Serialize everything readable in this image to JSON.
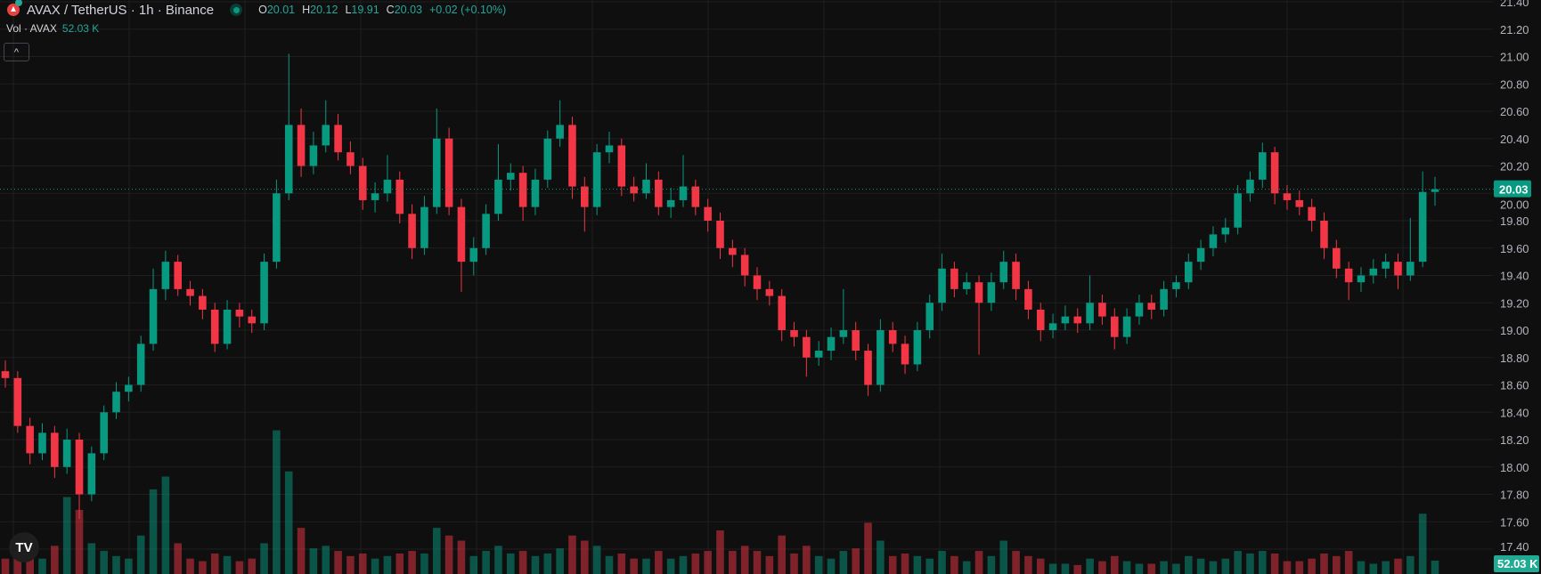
{
  "header": {
    "symbol_title": "AVAX / TetherUS · 1h · Binance",
    "open_label": "O",
    "open": "20.01",
    "high_label": "H",
    "high": "20.12",
    "low_label": "L",
    "low": "19.91",
    "close_label": "C",
    "close": "20.03",
    "change": "+0.02 (+0.10%)",
    "volume_label": "Vol · AVAX",
    "volume_value": "52.03 K",
    "collapse_icon": "chevron-up-icon",
    "collapse_glyph": "^"
  },
  "colors": {
    "up": "#089981",
    "down": "#f23645",
    "background": "#0f0f0f",
    "grid": "#1f1f1f",
    "price_line": "#089981",
    "volume_label_bg": "#22ab94"
  },
  "price_axis": {
    "ticks": [
      "21.40",
      "21.20",
      "21.00",
      "20.80",
      "20.60",
      "20.40",
      "20.20",
      "20.00",
      "19.80",
      "19.60",
      "19.40",
      "19.20",
      "19.00",
      "18.80",
      "18.60",
      "18.40",
      "18.20",
      "18.00",
      "17.80",
      "17.60",
      "17.40"
    ],
    "current_price_label": "20.03",
    "current_volume_label": "52.03 K"
  },
  "watermark": "TV",
  "chart_data": {
    "type": "candlestick",
    "symbol": "AVAX / TetherUS",
    "interval": "1h",
    "ylim": [
      17.4,
      21.4
    ],
    "grid": true,
    "current_price": 20.03,
    "candle_fields": [
      "open",
      "high",
      "low",
      "close",
      "volume_k"
    ],
    "candles": [
      [
        18.7,
        18.78,
        18.58,
        18.65,
        60
      ],
      [
        18.65,
        18.7,
        18.25,
        18.3,
        70
      ],
      [
        18.3,
        18.36,
        18.02,
        18.1,
        90
      ],
      [
        18.1,
        18.32,
        18.05,
        18.25,
        60
      ],
      [
        18.25,
        18.3,
        17.92,
        18.0,
        110
      ],
      [
        18.0,
        18.28,
        17.95,
        18.2,
        300
      ],
      [
        18.2,
        18.25,
        17.62,
        17.8,
        250
      ],
      [
        17.8,
        18.15,
        17.75,
        18.1,
        120
      ],
      [
        18.1,
        18.45,
        18.05,
        18.4,
        90
      ],
      [
        18.4,
        18.62,
        18.35,
        18.55,
        70
      ],
      [
        18.55,
        18.66,
        18.48,
        18.6,
        60
      ],
      [
        18.6,
        18.96,
        18.55,
        18.9,
        150
      ],
      [
        18.9,
        19.45,
        18.85,
        19.3,
        330
      ],
      [
        19.3,
        19.58,
        19.22,
        19.5,
        380
      ],
      [
        19.5,
        19.55,
        19.25,
        19.3,
        120
      ],
      [
        19.3,
        19.36,
        19.18,
        19.25,
        60
      ],
      [
        19.25,
        19.3,
        19.08,
        19.15,
        50
      ],
      [
        19.15,
        19.2,
        18.84,
        18.9,
        80
      ],
      [
        18.9,
        19.22,
        18.86,
        19.15,
        70
      ],
      [
        19.15,
        19.2,
        19.02,
        19.1,
        50
      ],
      [
        19.1,
        19.15,
        18.98,
        19.05,
        60
      ],
      [
        19.05,
        19.56,
        19.0,
        19.5,
        120
      ],
      [
        19.5,
        20.1,
        19.45,
        20.0,
        560
      ],
      [
        20.0,
        21.02,
        19.95,
        20.5,
        400
      ],
      [
        20.5,
        20.62,
        20.12,
        20.2,
        180
      ],
      [
        20.2,
        20.45,
        20.14,
        20.35,
        100
      ],
      [
        20.35,
        20.68,
        20.3,
        20.5,
        110
      ],
      [
        20.5,
        20.58,
        20.24,
        20.3,
        90
      ],
      [
        20.3,
        20.38,
        20.14,
        20.2,
        70
      ],
      [
        20.2,
        20.26,
        19.88,
        19.95,
        80
      ],
      [
        19.95,
        20.08,
        19.86,
        20.0,
        60
      ],
      [
        20.0,
        20.28,
        19.94,
        20.1,
        70
      ],
      [
        20.1,
        20.16,
        19.78,
        19.85,
        80
      ],
      [
        19.85,
        19.92,
        19.52,
        19.6,
        90
      ],
      [
        19.6,
        19.98,
        19.55,
        19.9,
        80
      ],
      [
        19.9,
        20.62,
        19.85,
        20.4,
        180
      ],
      [
        20.4,
        20.48,
        19.84,
        19.9,
        150
      ],
      [
        19.9,
        19.96,
        19.28,
        19.5,
        130
      ],
      [
        19.5,
        19.68,
        19.4,
        19.6,
        70
      ],
      [
        19.6,
        19.92,
        19.55,
        19.85,
        90
      ],
      [
        19.85,
        20.36,
        19.8,
        20.1,
        110
      ],
      [
        20.1,
        20.22,
        20.02,
        20.15,
        80
      ],
      [
        20.15,
        20.2,
        19.8,
        19.9,
        90
      ],
      [
        19.9,
        20.18,
        19.84,
        20.1,
        70
      ],
      [
        20.1,
        20.46,
        20.04,
        20.4,
        80
      ],
      [
        20.4,
        20.68,
        20.34,
        20.5,
        100
      ],
      [
        20.5,
        20.56,
        19.96,
        20.05,
        150
      ],
      [
        20.05,
        20.12,
        19.72,
        19.9,
        130
      ],
      [
        19.9,
        20.36,
        19.84,
        20.3,
        110
      ],
      [
        20.3,
        20.45,
        20.22,
        20.35,
        70
      ],
      [
        20.35,
        20.4,
        19.98,
        20.05,
        80
      ],
      [
        20.05,
        20.12,
        19.94,
        20.0,
        60
      ],
      [
        20.0,
        20.22,
        19.96,
        20.1,
        60
      ],
      [
        20.1,
        20.16,
        19.84,
        19.9,
        90
      ],
      [
        19.9,
        20.04,
        19.82,
        19.95,
        60
      ],
      [
        19.95,
        20.28,
        19.9,
        20.05,
        70
      ],
      [
        20.05,
        20.1,
        19.84,
        19.9,
        80
      ],
      [
        19.9,
        19.96,
        19.72,
        19.8,
        90
      ],
      [
        19.8,
        19.86,
        19.52,
        19.6,
        170
      ],
      [
        19.6,
        19.66,
        19.46,
        19.55,
        90
      ],
      [
        19.55,
        19.6,
        19.32,
        19.4,
        110
      ],
      [
        19.4,
        19.46,
        19.22,
        19.3,
        90
      ],
      [
        19.3,
        19.36,
        19.18,
        19.25,
        70
      ],
      [
        19.25,
        19.3,
        18.92,
        19.0,
        150
      ],
      [
        19.0,
        19.06,
        18.88,
        18.95,
        80
      ],
      [
        18.95,
        19.0,
        18.66,
        18.8,
        110
      ],
      [
        18.8,
        18.92,
        18.74,
        18.85,
        70
      ],
      [
        18.85,
        19.02,
        18.78,
        18.95,
        60
      ],
      [
        18.95,
        19.3,
        18.9,
        19.0,
        90
      ],
      [
        19.0,
        19.06,
        18.78,
        18.85,
        100
      ],
      [
        18.85,
        18.9,
        18.52,
        18.6,
        200
      ],
      [
        18.6,
        19.08,
        18.55,
        19.0,
        130
      ],
      [
        19.0,
        19.06,
        18.84,
        18.9,
        70
      ],
      [
        18.9,
        18.96,
        18.68,
        18.75,
        80
      ],
      [
        18.75,
        19.06,
        18.7,
        19.0,
        70
      ],
      [
        19.0,
        19.26,
        18.94,
        19.2,
        60
      ],
      [
        19.2,
        19.56,
        19.14,
        19.45,
        90
      ],
      [
        19.45,
        19.5,
        19.24,
        19.3,
        70
      ],
      [
        19.3,
        19.42,
        19.26,
        19.35,
        50
      ],
      [
        19.35,
        19.4,
        18.82,
        19.2,
        90
      ],
      [
        19.2,
        19.42,
        19.14,
        19.35,
        70
      ],
      [
        19.35,
        19.58,
        19.3,
        19.5,
        130
      ],
      [
        19.5,
        19.56,
        19.22,
        19.3,
        90
      ],
      [
        19.3,
        19.36,
        19.08,
        19.15,
        70
      ],
      [
        19.15,
        19.2,
        18.92,
        19.0,
        60
      ],
      [
        19.0,
        19.12,
        18.94,
        19.05,
        40
      ],
      [
        19.05,
        19.18,
        19.0,
        19.1,
        40
      ],
      [
        19.1,
        19.16,
        18.98,
        19.05,
        35
      ],
      [
        19.05,
        19.4,
        19.0,
        19.2,
        60
      ],
      [
        19.2,
        19.26,
        19.04,
        19.1,
        50
      ],
      [
        19.1,
        19.16,
        18.86,
        18.95,
        70
      ],
      [
        18.95,
        19.16,
        18.9,
        19.1,
        50
      ],
      [
        19.1,
        19.26,
        19.04,
        19.2,
        40
      ],
      [
        19.2,
        19.26,
        19.08,
        19.15,
        40
      ],
      [
        19.15,
        19.36,
        19.1,
        19.3,
        50
      ],
      [
        19.3,
        19.4,
        19.24,
        19.35,
        40
      ],
      [
        19.35,
        19.56,
        19.3,
        19.5,
        70
      ],
      [
        19.5,
        19.66,
        19.44,
        19.6,
        60
      ],
      [
        19.6,
        19.76,
        19.54,
        19.7,
        50
      ],
      [
        19.7,
        19.82,
        19.64,
        19.75,
        60
      ],
      [
        19.75,
        20.06,
        19.7,
        20.0,
        90
      ],
      [
        20.0,
        20.16,
        19.94,
        20.1,
        80
      ],
      [
        20.1,
        20.37,
        20.04,
        20.3,
        90
      ],
      [
        20.3,
        20.34,
        19.92,
        20.0,
        80
      ],
      [
        20.0,
        20.06,
        19.88,
        19.95,
        50
      ],
      [
        19.95,
        20.02,
        19.84,
        19.9,
        50
      ],
      [
        19.9,
        19.96,
        19.72,
        19.8,
        60
      ],
      [
        19.8,
        19.86,
        19.52,
        19.6,
        80
      ],
      [
        19.6,
        19.66,
        19.38,
        19.45,
        70
      ],
      [
        19.45,
        19.5,
        19.22,
        19.35,
        90
      ],
      [
        19.35,
        19.46,
        19.28,
        19.4,
        50
      ],
      [
        19.4,
        19.52,
        19.34,
        19.45,
        40
      ],
      [
        19.45,
        19.56,
        19.38,
        19.5,
        50
      ],
      [
        19.5,
        19.56,
        19.3,
        19.4,
        60
      ],
      [
        19.4,
        19.82,
        19.36,
        19.5,
        70
      ],
      [
        19.5,
        20.16,
        19.46,
        20.01,
        235
      ],
      [
        20.01,
        20.12,
        19.91,
        20.03,
        52.03
      ]
    ]
  }
}
